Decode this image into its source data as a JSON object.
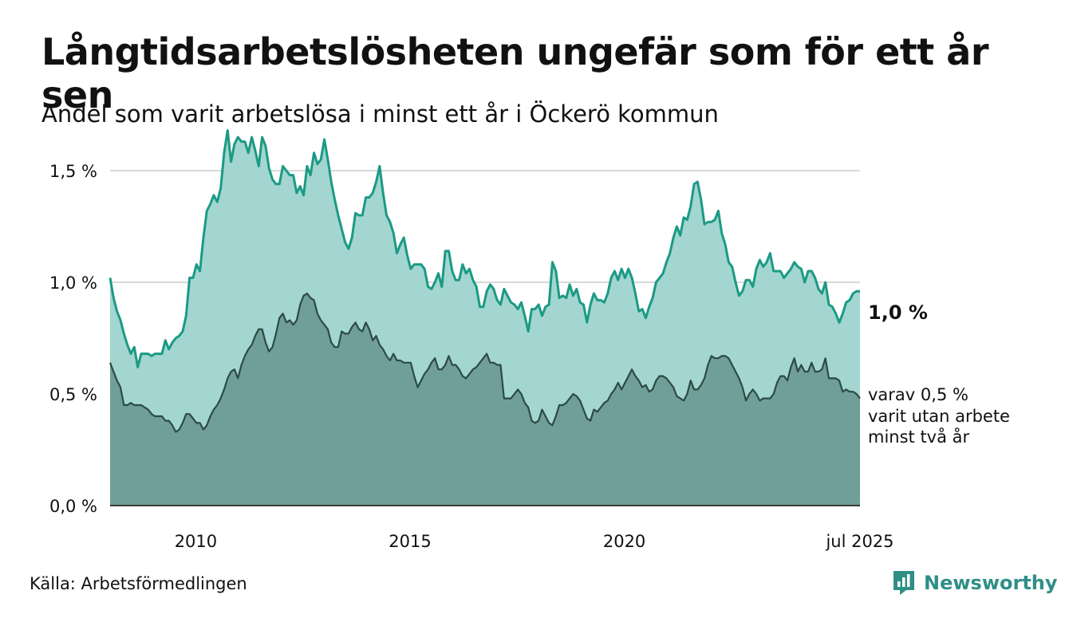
{
  "title": "Långtidsarbetslösheten ungefär som för ett år sen",
  "subtitle": "Andel som varit arbetslösa i minst ett år i Öckerö kommun",
  "source": "Källa: Arbetsförmedlingen",
  "brand": {
    "name": "Newsworthy",
    "icon": "newsworthy-logo-icon",
    "color": "#2f8f86"
  },
  "colors": {
    "upper_fill": "#a3d6d0",
    "upper_line": "#1b9a85",
    "lower_fill": "#6f9f98",
    "lower_line": "#2d4a44",
    "grid": "#d9d9d9"
  },
  "chart_data": {
    "type": "area",
    "x_start": "2008-01",
    "x_end": "2025-07",
    "frequency": "monthly",
    "ylim": [
      0,
      1.8
    ],
    "yticks": [
      0.0,
      0.5,
      1.0,
      1.5
    ],
    "ytick_labels": [
      "0,0 %",
      "0,5 %",
      "1,0 %",
      "1,5 %"
    ],
    "xtick_labels": [
      "2010",
      "2015",
      "2020",
      "jul 2025"
    ],
    "grid": true,
    "end_labels": {
      "upper": "1,0 %",
      "lower": [
        "varav 0,5 %",
        "varit utan arbete",
        "minst två år"
      ]
    },
    "series": [
      {
        "key": "minst_ett_ar",
        "values": [
          1.02,
          0.93,
          0.87,
          0.83,
          0.77,
          0.72,
          0.68,
          0.71,
          0.62,
          0.68,
          0.68,
          0.68,
          0.67,
          0.68,
          0.68,
          0.68,
          0.74,
          0.7,
          0.73,
          0.75,
          0.76,
          0.78,
          0.85,
          1.02,
          1.02,
          1.08,
          1.05,
          1.2,
          1.32,
          1.35,
          1.39,
          1.36,
          1.42,
          1.58,
          1.68,
          1.54,
          1.62,
          1.65,
          1.63,
          1.63,
          1.58,
          1.65,
          1.59,
          1.52,
          1.65,
          1.61,
          1.51,
          1.46,
          1.44,
          1.44,
          1.52,
          1.5,
          1.48,
          1.48,
          1.4,
          1.43,
          1.39,
          1.52,
          1.48,
          1.58,
          1.53,
          1.55,
          1.64,
          1.55,
          1.45,
          1.37,
          1.3,
          1.24,
          1.18,
          1.15,
          1.2,
          1.31,
          1.3,
          1.3,
          1.38,
          1.38,
          1.4,
          1.45,
          1.52,
          1.4,
          1.3,
          1.27,
          1.22,
          1.13,
          1.17,
          1.2,
          1.12,
          1.06,
          1.08,
          1.08,
          1.08,
          1.06,
          0.98,
          0.97,
          1.0,
          1.04,
          0.98,
          1.14,
          1.14,
          1.05,
          1.01,
          1.01,
          1.08,
          1.04,
          1.06,
          1.01,
          0.98,
          0.89,
          0.89,
          0.96,
          0.99,
          0.97,
          0.92,
          0.9,
          0.97,
          0.94,
          0.91,
          0.9,
          0.88,
          0.91,
          0.85,
          0.78,
          0.88,
          0.88,
          0.9,
          0.85,
          0.89,
          0.9,
          1.09,
          1.05,
          0.93,
          0.94,
          0.93,
          0.99,
          0.94,
          0.97,
          0.91,
          0.9,
          0.82,
          0.9,
          0.95,
          0.92,
          0.92,
          0.91,
          0.95,
          1.02,
          1.05,
          1.01,
          1.06,
          1.02,
          1.06,
          1.02,
          0.95,
          0.87,
          0.88,
          0.84,
          0.89,
          0.93,
          1.0,
          1.02,
          1.04,
          1.09,
          1.13,
          1.2,
          1.25,
          1.21,
          1.29,
          1.28,
          1.34,
          1.44,
          1.45,
          1.37,
          1.26,
          1.27,
          1.27,
          1.28,
          1.32,
          1.22,
          1.17,
          1.09,
          1.07,
          1.0,
          0.94,
          0.96,
          1.01,
          1.01,
          0.98,
          1.06,
          1.1,
          1.07,
          1.09,
          1.13,
          1.05,
          1.05,
          1.05,
          1.02,
          1.04,
          1.06,
          1.09,
          1.07,
          1.06,
          1.0,
          1.05,
          1.05,
          1.02,
          0.97,
          0.95,
          1.0,
          0.9,
          0.89,
          0.86,
          0.82,
          0.86,
          0.91,
          0.92,
          0.95,
          0.96,
          0.96
        ]
      },
      {
        "key": "minst_tva_ar",
        "values": [
          0.64,
          0.6,
          0.56,
          0.53,
          0.45,
          0.45,
          0.46,
          0.45,
          0.45,
          0.45,
          0.44,
          0.43,
          0.41,
          0.4,
          0.4,
          0.4,
          0.38,
          0.38,
          0.36,
          0.33,
          0.34,
          0.37,
          0.41,
          0.41,
          0.39,
          0.37,
          0.37,
          0.34,
          0.36,
          0.4,
          0.43,
          0.45,
          0.48,
          0.52,
          0.57,
          0.6,
          0.61,
          0.57,
          0.63,
          0.67,
          0.7,
          0.72,
          0.76,
          0.79,
          0.79,
          0.73,
          0.69,
          0.71,
          0.77,
          0.84,
          0.86,
          0.82,
          0.83,
          0.81,
          0.83,
          0.9,
          0.94,
          0.95,
          0.93,
          0.92,
          0.86,
          0.83,
          0.81,
          0.79,
          0.73,
          0.71,
          0.71,
          0.78,
          0.77,
          0.77,
          0.8,
          0.82,
          0.79,
          0.78,
          0.82,
          0.79,
          0.74,
          0.76,
          0.72,
          0.7,
          0.67,
          0.65,
          0.68,
          0.65,
          0.65,
          0.64,
          0.64,
          0.64,
          0.58,
          0.53,
          0.56,
          0.59,
          0.61,
          0.64,
          0.66,
          0.61,
          0.61,
          0.63,
          0.67,
          0.63,
          0.63,
          0.61,
          0.58,
          0.57,
          0.59,
          0.61,
          0.62,
          0.64,
          0.66,
          0.68,
          0.64,
          0.64,
          0.63,
          0.63,
          0.48,
          0.48,
          0.48,
          0.5,
          0.52,
          0.5,
          0.46,
          0.44,
          0.38,
          0.37,
          0.38,
          0.43,
          0.4,
          0.37,
          0.36,
          0.4,
          0.45,
          0.45,
          0.46,
          0.48,
          0.5,
          0.49,
          0.47,
          0.43,
          0.39,
          0.38,
          0.43,
          0.42,
          0.44,
          0.46,
          0.47,
          0.5,
          0.52,
          0.55,
          0.52,
          0.55,
          0.58,
          0.61,
          0.58,
          0.56,
          0.53,
          0.54,
          0.51,
          0.52,
          0.56,
          0.58,
          0.58,
          0.57,
          0.55,
          0.53,
          0.49,
          0.48,
          0.47,
          0.5,
          0.56,
          0.52,
          0.52,
          0.54,
          0.57,
          0.63,
          0.67,
          0.66,
          0.66,
          0.67,
          0.67,
          0.66,
          0.63,
          0.6,
          0.57,
          0.53,
          0.47,
          0.5,
          0.52,
          0.5,
          0.47,
          0.48,
          0.48,
          0.48,
          0.5,
          0.55,
          0.58,
          0.58,
          0.56,
          0.62,
          0.66,
          0.6,
          0.63,
          0.6,
          0.6,
          0.64,
          0.6,
          0.6,
          0.61,
          0.66,
          0.57,
          0.57,
          0.57,
          0.56,
          0.51,
          0.52,
          0.51,
          0.51,
          0.5,
          0.48
        ]
      }
    ]
  }
}
